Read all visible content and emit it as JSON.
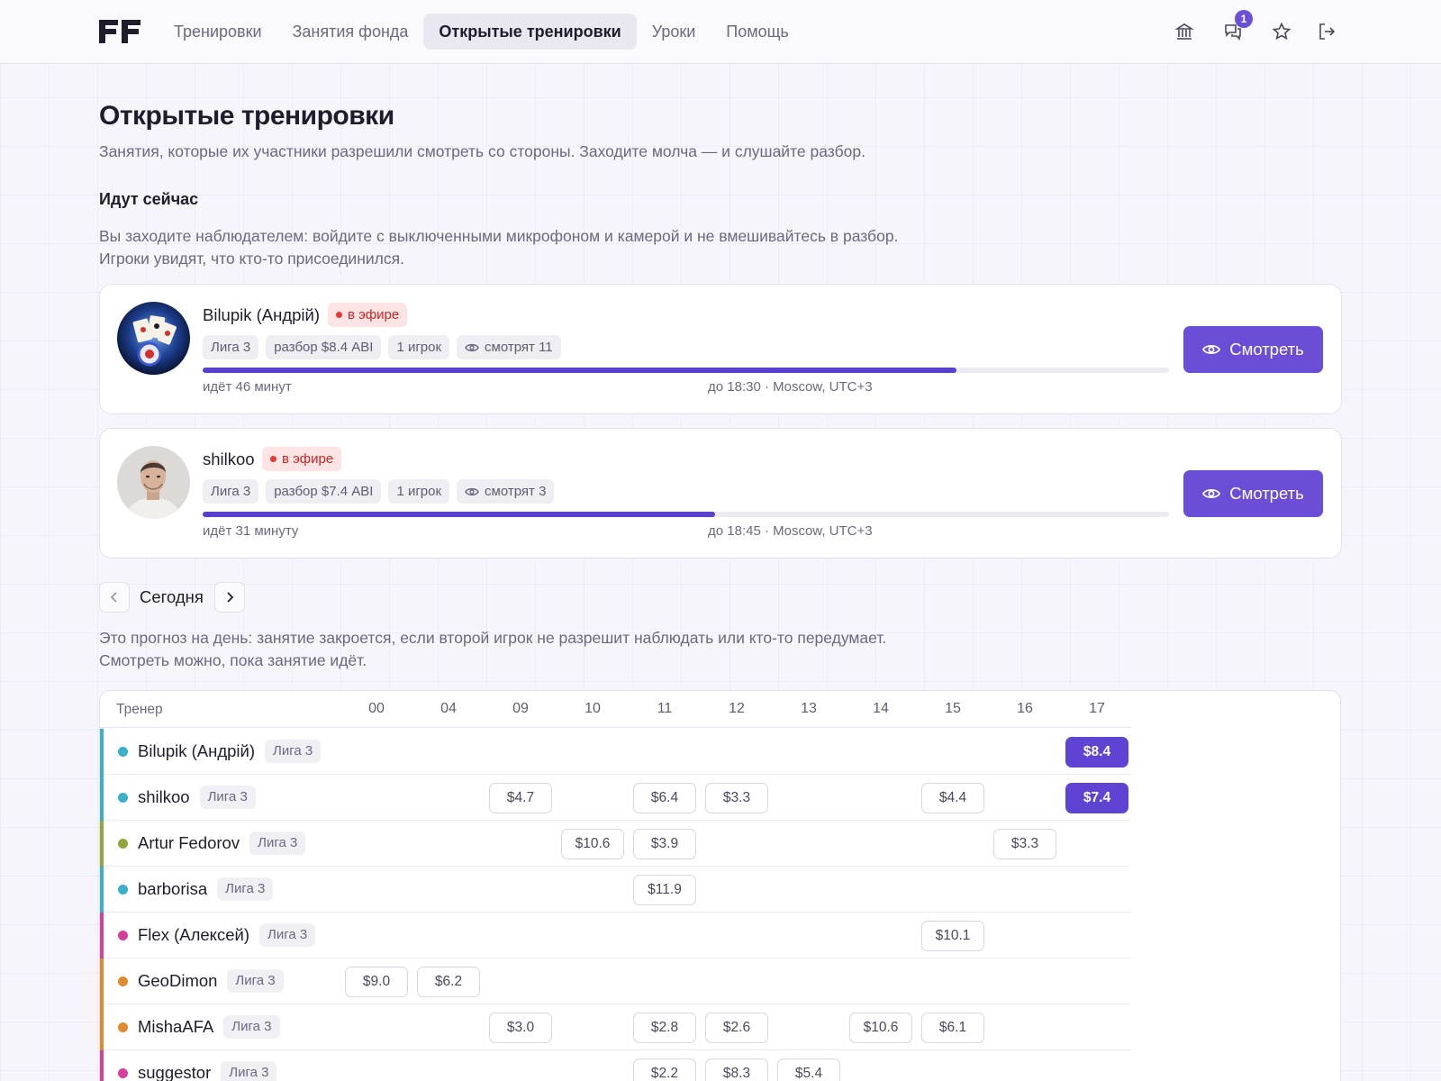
{
  "nav": {
    "items": [
      "Тренировки",
      "Занятия фонда",
      "Открытые тренировки",
      "Уроки",
      "Помощь"
    ],
    "active_index": 2,
    "icons": [
      "bank-icon",
      "chat-icon",
      "star-icon",
      "logout-icon"
    ],
    "chat_badge": "1"
  },
  "page": {
    "title": "Открытые тренировки",
    "subtitle": "Занятия, которые их участники разрешили смотреть со стороны. Заходите молча — и слушайте разбор."
  },
  "live": {
    "title": "Идут сейчас",
    "description": "Вы заходите наблюдателем: войдите с выключенными микрофоном и камерой и не вмешивайтесь в разбор. Игроки увидят, что кто-то присоединился.",
    "sessions": [
      {
        "name": "Bilupik (Андрій)",
        "status": "в эфире",
        "league": "Лига 3",
        "review": "разбор $8.4 ABI",
        "players": "1 игрок",
        "watchers": "смотрят 11",
        "progress": 0.78,
        "elapsed": "идёт 46 минут",
        "until": "до 18:30 · Moscow, UTC+3",
        "button": "Смотреть"
      },
      {
        "name": "shilkoo",
        "status": "в эфире",
        "league": "Лига 3",
        "review": "разбор $7.4 ABI",
        "players": "1 игрок",
        "watchers": "смотрят 3",
        "progress": 0.53,
        "elapsed": "идёт 31 минуту",
        "until": "до 18:45 · Moscow, UTC+3",
        "button": "Смотреть"
      }
    ]
  },
  "day": {
    "label": "Сегодня",
    "description": "Это прогноз на день: занятие закроется, если второй игрок не разрешит наблюдать или кто-то передумает. Смотреть можно, пока занятие идёт."
  },
  "schedule": {
    "trainer_header": "Тренер",
    "hours": [
      "00",
      "04",
      "09",
      "10",
      "11",
      "12",
      "13",
      "14",
      "15",
      "16",
      "17"
    ],
    "rows": [
      {
        "name": "Bilupik (Андрій)",
        "league": "Лига 3",
        "color": "#3bb0c9",
        "slots": [
          {
            "hour": "17",
            "value": "$8.4",
            "live": true
          }
        ]
      },
      {
        "name": "shilkoo",
        "league": "Лига 3",
        "color": "#3bb0c9",
        "slots": [
          {
            "hour": "09",
            "value": "$4.7"
          },
          {
            "hour": "11",
            "value": "$6.4"
          },
          {
            "hour": "12",
            "value": "$3.3"
          },
          {
            "hour": "15",
            "value": "$4.4"
          },
          {
            "hour": "17",
            "value": "$7.4",
            "live": true
          }
        ]
      },
      {
        "name": "Artur Fedorov",
        "league": "Лига 3",
        "color": "#8fa83a",
        "slots": [
          {
            "hour": "10",
            "value": "$10.6"
          },
          {
            "hour": "11",
            "value": "$3.9"
          },
          {
            "hour": "16",
            "value": "$3.3"
          }
        ]
      },
      {
        "name": "barborisa",
        "league": "Лига 3",
        "color": "#3bb0c9",
        "slots": [
          {
            "hour": "11",
            "value": "$11.9"
          }
        ]
      },
      {
        "name": "Flex (Алексей)",
        "league": "Лига 3",
        "color": "#d63f9b",
        "slots": [
          {
            "hour": "15",
            "value": "$10.1"
          }
        ]
      },
      {
        "name": "GeoDimon",
        "league": "Лига 3",
        "color": "#e08a2e",
        "slots": [
          {
            "hour": "00",
            "value": "$9.0"
          },
          {
            "hour": "04",
            "value": "$6.2"
          }
        ]
      },
      {
        "name": "MishaAFA",
        "league": "Лига 3",
        "color": "#e08a2e",
        "slots": [
          {
            "hour": "09",
            "value": "$3.0"
          },
          {
            "hour": "11",
            "value": "$2.8"
          },
          {
            "hour": "12",
            "value": "$2.6"
          },
          {
            "hour": "14",
            "value": "$10.6"
          },
          {
            "hour": "15",
            "value": "$6.1"
          }
        ]
      },
      {
        "name": "suggestor",
        "league": "Лига 3",
        "color": "#d63f9b",
        "slots": [
          {
            "hour": "11",
            "value": "$2.2"
          },
          {
            "hour": "12",
            "value": "$8.3"
          },
          {
            "hour": "13",
            "value": "$5.4"
          }
        ]
      }
    ]
  },
  "colors": {
    "accent": "#6a4fd6",
    "live_red": "#c62828"
  }
}
